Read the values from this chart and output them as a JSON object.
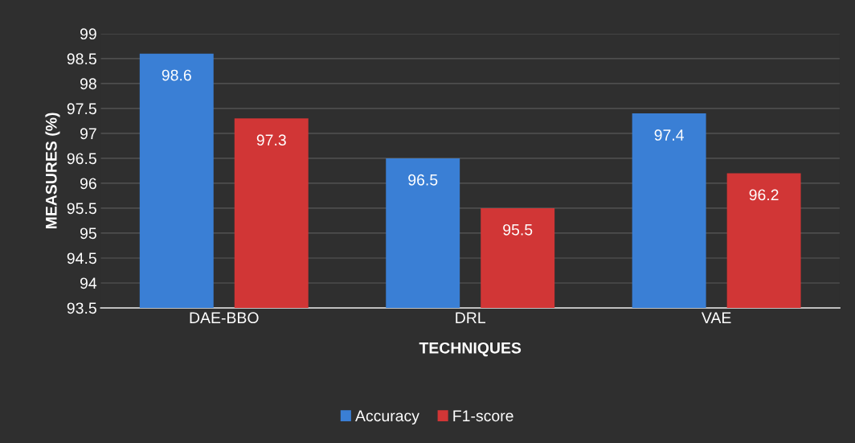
{
  "chart_data": {
    "type": "bar",
    "xlabel": "TECHNIQUES",
    "ylabel": "MEASURES (%)",
    "categories": [
      "DAE-BBO",
      "DRL",
      "VAE"
    ],
    "series": [
      {
        "name": "Accuracy",
        "color": "#3a7fd5",
        "values": [
          98.6,
          96.5,
          97.4
        ]
      },
      {
        "name": "F1-score",
        "color": "#d13636",
        "values": [
          97.3,
          95.5,
          96.2
        ]
      }
    ],
    "ylim": [
      93.5,
      99
    ],
    "yticks": [
      93.5,
      94,
      94.5,
      95,
      95.5,
      96,
      96.5,
      97,
      97.5,
      98,
      98.5,
      99
    ],
    "grid": "y",
    "legend": "bottom",
    "data_labels": true
  }
}
